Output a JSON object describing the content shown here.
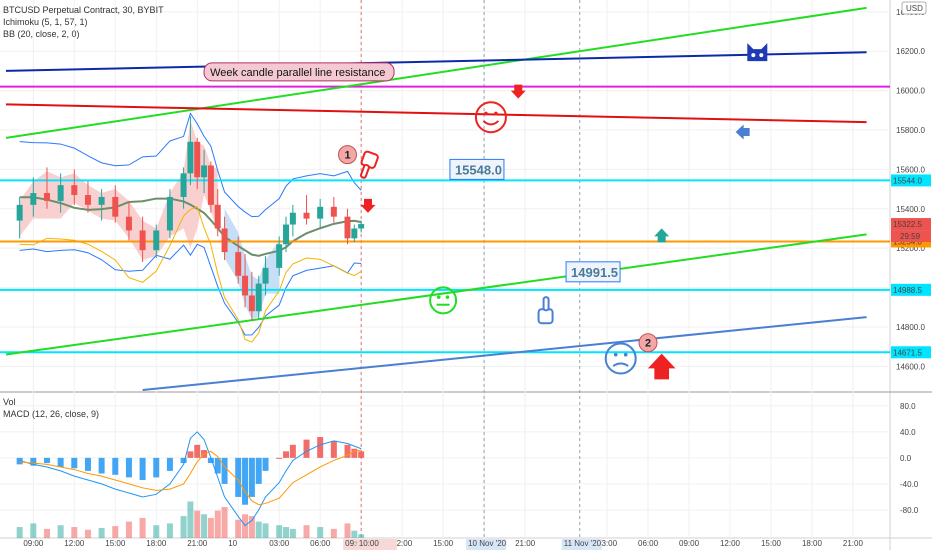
{
  "header": {
    "title": "BTCUSD Perpetual Contract, 30, BYBIT",
    "indicators": [
      "Ichimoku (5, 1, 57, 1)",
      "BB (20, close, 2, 0)"
    ],
    "currency": "USD"
  },
  "sub_panes": {
    "vol_label": "Vol",
    "macd_label": "MACD (12, 26, close, 9)"
  },
  "annotations": {
    "banner": "Week candle parallel line resistance",
    "callout_high": "15548.0",
    "callout_low": "14991.5",
    "badge_1": "1",
    "badge_2": "2",
    "countdown": "29:59"
  },
  "colors": {
    "bull": "#26a69a",
    "bear": "#ef5350",
    "cyan_level": "#00e5ff",
    "orange_level": "#ff9800",
    "green_trend": "#22dd22",
    "blue_trend": "#0a2aa8",
    "magenta_line": "#e020e0",
    "red_line": "#e01010",
    "steelblue_line": "#4a7fd4",
    "bb_line": "#2979ff",
    "kumo_red": "#f8c8c8",
    "kumo_blue": "#bcd9f4",
    "macd_line": "#2196f3",
    "signal_line": "#ff9800",
    "emoji_red": "#ee2222",
    "emoji_green": "#22dd22",
    "emoji_blue": "#4a7fd4"
  },
  "chart_data": [
    {
      "type": "line",
      "subtype": "candlestick price chart with drawings",
      "title": "BTCUSD Perpetual Contract, 30, BYBIT",
      "ylim": [
        14480,
        16460
      ],
      "y_ticks": [
        16400,
        16200,
        16000,
        15800,
        15600,
        15400,
        15200,
        15000,
        14800,
        14600
      ],
      "x_ticks": [
        "09:00",
        "12:00",
        "15:00",
        "18:00",
        "21:00",
        "10",
        "03:00",
        "06:00",
        "09:00",
        "12:00",
        "15:00",
        "18:00",
        "21:00",
        "03:00",
        "06:00",
        "09:00",
        "12:00",
        "15:00",
        "18:00",
        "21:00"
      ],
      "x_tick_time": [
        "11-09 09:00",
        "11-09 12:00",
        "11-09 15:00",
        "11-09 18:00",
        "11-09 21:00",
        "11-10 00:00",
        "11-10 03:00",
        "11-10 06:00",
        "11-10 09:00",
        "11-10 12:00",
        "11-10 15:00",
        "11-10 18:00",
        "11-10 21:00",
        "11-11 03:00",
        "11-11 06:00",
        "11-11 09:00",
        "11-11 12:00",
        "11-11 15:00",
        "11-11 18:00",
        "11-11 21:00"
      ],
      "axis_highlights": [
        {
          "label": "09:00",
          "time": "11-10 09:00",
          "style": "red"
        },
        {
          "label": "10:00",
          "time": "11-10 10:00",
          "style": "red"
        },
        {
          "label": "10 Nov '20",
          "time": "11-10 18:00",
          "style": "blue"
        },
        {
          "label": "11 Nov '20",
          "time": "11-11 01:00",
          "style": "blue"
        }
      ],
      "price_labels": [
        {
          "value": "15544.0",
          "price": 15544,
          "style": "cyan"
        },
        {
          "value": "15322.5",
          "price": 15322.5,
          "style": "red"
        },
        {
          "value": "15234.0",
          "price": 15234,
          "style": "orange"
        },
        {
          "value": "14988.5",
          "price": 14988.5,
          "style": "cyan"
        },
        {
          "value": "14671.5",
          "price": 14671.5,
          "style": "cyan"
        }
      ],
      "horizontal_levels": [
        {
          "price": 15544,
          "color": "cyan"
        },
        {
          "price": 15234,
          "color": "orange"
        },
        {
          "price": 14988.5,
          "color": "cyan"
        },
        {
          "price": 14671.5,
          "color": "cyan"
        },
        {
          "price": 16020,
          "color": "magenta"
        }
      ],
      "trend_lines": [
        {
          "color": "green",
          "points": [
            [
              "11-09 07:00",
              15760
            ],
            [
              "11-11 22:00",
              16420
            ]
          ]
        },
        {
          "color": "green",
          "points": [
            [
              "11-09 07:00",
              14660
            ],
            [
              "11-11 22:00",
              15270
            ]
          ]
        },
        {
          "color": "navy",
          "points": [
            [
              "11-09 07:00",
              16100
            ],
            [
              "11-11 22:00",
              16195
            ]
          ]
        },
        {
          "color": "red",
          "points": [
            [
              "11-09 07:00",
              15930
            ],
            [
              "11-11 22:00",
              15840
            ]
          ]
        },
        {
          "color": "steelblue",
          "points": [
            [
              "11-09 17:00",
              14480
            ],
            [
              "11-11 22:00",
              14850
            ]
          ]
        }
      ],
      "ohlc": [
        {
          "t": "11-09 08:00",
          "o": 15340,
          "h": 15460,
          "l": 15250,
          "c": 15420
        },
        {
          "t": "11-09 09:00",
          "o": 15420,
          "h": 15560,
          "l": 15360,
          "c": 15480
        },
        {
          "t": "11-09 10:00",
          "o": 15480,
          "h": 15610,
          "l": 15400,
          "c": 15440
        },
        {
          "t": "11-09 11:00",
          "o": 15440,
          "h": 15580,
          "l": 15380,
          "c": 15520
        },
        {
          "t": "11-09 12:00",
          "o": 15520,
          "h": 15600,
          "l": 15420,
          "c": 15470
        },
        {
          "t": "11-09 13:00",
          "o": 15470,
          "h": 15540,
          "l": 15380,
          "c": 15420
        },
        {
          "t": "11-09 14:00",
          "o": 15420,
          "h": 15500,
          "l": 15340,
          "c": 15460
        },
        {
          "t": "11-09 15:00",
          "o": 15460,
          "h": 15520,
          "l": 15330,
          "c": 15360
        },
        {
          "t": "11-09 16:00",
          "o": 15360,
          "h": 15440,
          "l": 15240,
          "c": 15290
        },
        {
          "t": "11-09 17:00",
          "o": 15290,
          "h": 15360,
          "l": 15130,
          "c": 15190
        },
        {
          "t": "11-09 18:00",
          "o": 15190,
          "h": 15320,
          "l": 15150,
          "c": 15290
        },
        {
          "t": "11-09 19:00",
          "o": 15290,
          "h": 15500,
          "l": 15250,
          "c": 15460
        },
        {
          "t": "11-09 20:00",
          "o": 15460,
          "h": 15610,
          "l": 15400,
          "c": 15580
        },
        {
          "t": "11-09 20:30",
          "o": 15580,
          "h": 15870,
          "l": 15520,
          "c": 15740
        },
        {
          "t": "11-09 21:00",
          "o": 15740,
          "h": 15760,
          "l": 15500,
          "c": 15560
        },
        {
          "t": "11-09 21:30",
          "o": 15560,
          "h": 15700,
          "l": 15480,
          "c": 15620
        },
        {
          "t": "11-09 22:00",
          "o": 15620,
          "h": 15640,
          "l": 15380,
          "c": 15420
        },
        {
          "t": "11-09 22:30",
          "o": 15420,
          "h": 15500,
          "l": 15260,
          "c": 15300
        },
        {
          "t": "11-09 23:00",
          "o": 15300,
          "h": 15360,
          "l": 15140,
          "c": 15180
        },
        {
          "t": "11-10 00:00",
          "o": 15180,
          "h": 15260,
          "l": 15020,
          "c": 15060
        },
        {
          "t": "11-10 00:30",
          "o": 15060,
          "h": 15170,
          "l": 14900,
          "c": 14960
        },
        {
          "t": "11-10 01:00",
          "o": 14960,
          "h": 15080,
          "l": 14830,
          "c": 14880
        },
        {
          "t": "11-10 01:30",
          "o": 14880,
          "h": 15060,
          "l": 14840,
          "c": 15020
        },
        {
          "t": "11-10 02:00",
          "o": 15020,
          "h": 15160,
          "l": 14960,
          "c": 15100
        },
        {
          "t": "11-10 03:00",
          "o": 15100,
          "h": 15260,
          "l": 15060,
          "c": 15220
        },
        {
          "t": "11-10 03:30",
          "o": 15220,
          "h": 15360,
          "l": 15180,
          "c": 15320
        },
        {
          "t": "11-10 04:00",
          "o": 15320,
          "h": 15420,
          "l": 15260,
          "c": 15380
        },
        {
          "t": "11-10 05:00",
          "o": 15380,
          "h": 15470,
          "l": 15320,
          "c": 15350
        },
        {
          "t": "11-10 06:00",
          "o": 15350,
          "h": 15450,
          "l": 15300,
          "c": 15410
        },
        {
          "t": "11-10 07:00",
          "o": 15410,
          "h": 15460,
          "l": 15330,
          "c": 15360
        },
        {
          "t": "11-10 08:00",
          "o": 15360,
          "h": 15400,
          "l": 15220,
          "c": 15250
        },
        {
          "t": "11-10 08:30",
          "o": 15250,
          "h": 15320,
          "l": 15230,
          "c": 15300
        },
        {
          "t": "11-10 09:00",
          "o": 15300,
          "h": 15340,
          "l": 15280,
          "c": 15322.5
        }
      ],
      "volume_ylim": [
        0,
        80
      ],
      "volume": [
        12,
        16,
        10,
        14,
        12,
        9,
        11,
        13,
        18,
        22,
        14,
        16,
        24,
        40,
        30,
        26,
        22,
        30,
        34,
        20,
        26,
        24,
        18,
        16,
        14,
        12,
        10,
        14,
        12,
        10,
        16,
        8,
        4
      ],
      "macd_ylim": [
        -120,
        95
      ],
      "macd_ticks": [
        80,
        40,
        0,
        -40,
        -80
      ],
      "macd_hist": [
        -10,
        -12,
        -8,
        -14,
        -16,
        -20,
        -24,
        -26,
        -30,
        -34,
        -30,
        -20,
        -8,
        10,
        20,
        12,
        -8,
        -24,
        -40,
        -60,
        -72,
        -60,
        -40,
        -20,
        0,
        10,
        20,
        28,
        32,
        26,
        20,
        14,
        10
      ],
      "macd_line": [
        -4,
        -10,
        -14,
        -20,
        -28,
        -34,
        -40,
        -48,
        -54,
        -60,
        -56,
        -40,
        -10,
        30,
        40,
        28,
        0,
        -30,
        -60,
        -90,
        -104,
        -96,
        -80,
        -60,
        -38,
        -20,
        -4,
        10,
        20,
        26,
        22,
        18,
        14
      ],
      "signal_line": [
        -6,
        -8,
        -10,
        -14,
        -18,
        -24,
        -28,
        -34,
        -40,
        -46,
        -50,
        -48,
        -40,
        -24,
        -6,
        6,
        10,
        2,
        -14,
        -34,
        -52,
        -66,
        -72,
        -70,
        -62,
        -50,
        -38,
        -26,
        -14,
        -4,
        4,
        10,
        12
      ]
    }
  ]
}
